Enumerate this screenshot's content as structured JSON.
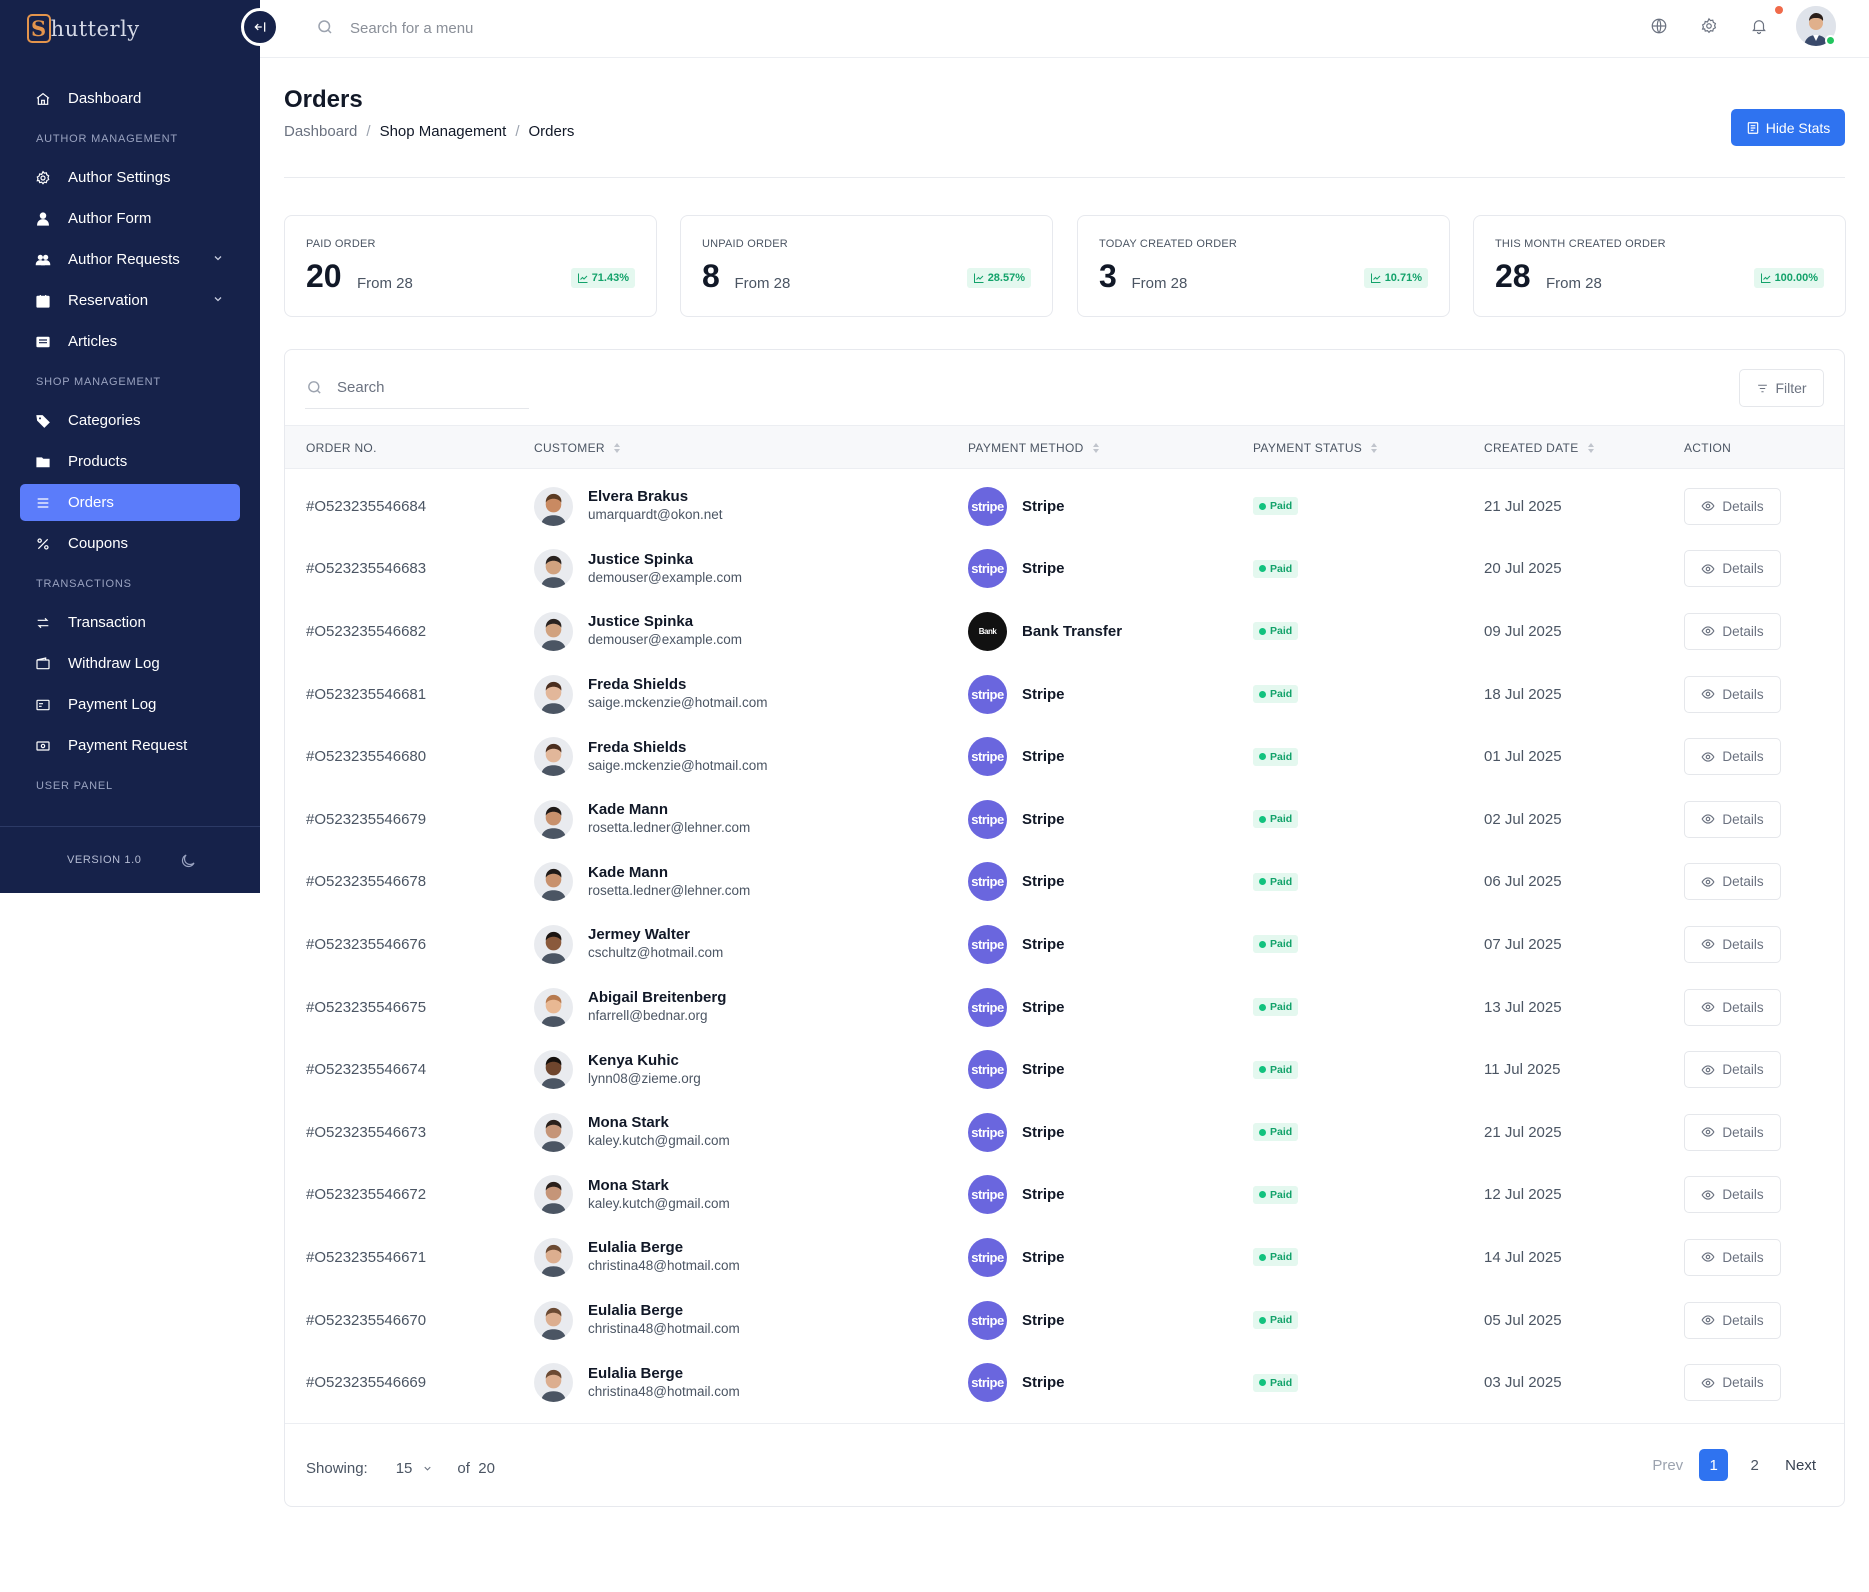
{
  "app": {
    "logo_letter": "S",
    "logo_rest": "hutterly"
  },
  "sidebar": {
    "items": [
      {
        "label": "Dashboard",
        "icon": "home-icon"
      },
      {
        "section": "AUTHOR MANAGEMENT"
      },
      {
        "label": "Author Settings",
        "icon": "gear-icon"
      },
      {
        "label": "Author Form",
        "icon": "user-icon"
      },
      {
        "label": "Author Requests",
        "icon": "users-icon",
        "chevron": true
      },
      {
        "label": "Reservation",
        "icon": "calendar-icon",
        "chevron": true
      },
      {
        "label": "Articles",
        "icon": "article-icon"
      },
      {
        "section": "SHOP MANAGEMENT"
      },
      {
        "label": "Categories",
        "icon": "tag-icon"
      },
      {
        "label": "Products",
        "icon": "folder-icon"
      },
      {
        "label": "Orders",
        "icon": "list-icon",
        "active": true
      },
      {
        "label": "Coupons",
        "icon": "percent-icon"
      },
      {
        "section": "TRANSACTIONS"
      },
      {
        "label": "Transaction",
        "icon": "exchange-icon"
      },
      {
        "label": "Withdraw Log",
        "icon": "wallet-icon"
      },
      {
        "label": "Payment Log",
        "icon": "receipt-icon"
      },
      {
        "label": "Payment Request",
        "icon": "money-icon"
      },
      {
        "section": "USER PANEL"
      }
    ],
    "version": "VERSION 1.0"
  },
  "topbar": {
    "search_placeholder": "Search for a menu"
  },
  "page": {
    "title": "Orders",
    "breadcrumb": [
      "Dashboard",
      "Shop Management",
      "Orders"
    ],
    "hide_stats_label": "Hide Stats"
  },
  "stats": [
    {
      "label": "PAID ORDER",
      "value": "20",
      "from": "From 28",
      "pct": "71.43%"
    },
    {
      "label": "UNPAID ORDER",
      "value": "8",
      "from": "From 28",
      "pct": "28.57%"
    },
    {
      "label": "TODAY CREATED ORDER",
      "value": "3",
      "from": "From 28",
      "pct": "10.71%"
    },
    {
      "label": "THIS MONTH CREATED ORDER",
      "value": "28",
      "from": "From 28",
      "pct": "100.00%"
    }
  ],
  "table": {
    "search_placeholder": "Search",
    "filter_label": "Filter",
    "columns": [
      "ORDER NO.",
      "CUSTOMER",
      "PAYMENT METHOD",
      "PAYMENT STATUS",
      "CREATED DATE",
      "ACTION"
    ],
    "details_label": "Details",
    "rows": [
      {
        "order": "#O523235546684",
        "name": "Elvera Brakus",
        "email": "umarquardt@okon.net",
        "method": "Stripe",
        "method_logo": "stripe",
        "status": "Paid",
        "date": "21 Jul 2025",
        "skin": "#c98a62",
        "hair": "#5a3a22"
      },
      {
        "order": "#O523235546683",
        "name": "Justice Spinka",
        "email": "demouser@example.com",
        "method": "Stripe",
        "method_logo": "stripe",
        "status": "Paid",
        "date": "20 Jul 2025",
        "skin": "#d1a27f",
        "hair": "#2a2320"
      },
      {
        "order": "#O523235546682",
        "name": "Justice Spinka",
        "email": "demouser@example.com",
        "method": "Bank Transfer",
        "method_logo": "Bank",
        "status": "Paid",
        "date": "09 Jul 2025",
        "skin": "#d1a27f",
        "hair": "#2a2320"
      },
      {
        "order": "#O523235546681",
        "name": "Freda Shields",
        "email": "saige.mckenzie@hotmail.com",
        "method": "Stripe",
        "method_logo": "stripe",
        "status": "Paid",
        "date": "18 Jul 2025",
        "skin": "#e2b79a",
        "hair": "#4a2e1f"
      },
      {
        "order": "#O523235546680",
        "name": "Freda Shields",
        "email": "saige.mckenzie@hotmail.com",
        "method": "Stripe",
        "method_logo": "stripe",
        "status": "Paid",
        "date": "01 Jul 2025",
        "skin": "#e2b79a",
        "hair": "#4a2e1f"
      },
      {
        "order": "#O523235546679",
        "name": "Kade Mann",
        "email": "rosetta.ledner@lehner.com",
        "method": "Stripe",
        "method_logo": "stripe",
        "status": "Paid",
        "date": "02 Jul 2025",
        "skin": "#c8916d",
        "hair": "#1f1a18"
      },
      {
        "order": "#O523235546678",
        "name": "Kade Mann",
        "email": "rosetta.ledner@lehner.com",
        "method": "Stripe",
        "method_logo": "stripe",
        "status": "Paid",
        "date": "06 Jul 2025",
        "skin": "#c8916d",
        "hair": "#1f1a18"
      },
      {
        "order": "#O523235546676",
        "name": "Jermey Walter",
        "email": "cschultz@hotmail.com",
        "method": "Stripe",
        "method_logo": "stripe",
        "status": "Paid",
        "date": "07 Jul 2025",
        "skin": "#8a5a3c",
        "hair": "#1b1512"
      },
      {
        "order": "#O523235546675",
        "name": "Abigail Breitenberg",
        "email": "nfarrell@bednar.org",
        "method": "Stripe",
        "method_logo": "stripe",
        "status": "Paid",
        "date": "13 Jul 2025",
        "skin": "#e8b893",
        "hair": "#b77a4f"
      },
      {
        "order": "#O523235546674",
        "name": "Kenya Kuhic",
        "email": "lynn08@zieme.org",
        "method": "Stripe",
        "method_logo": "stripe",
        "status": "Paid",
        "date": "11 Jul 2025",
        "skin": "#6e452d",
        "hair": "#15100d"
      },
      {
        "order": "#O523235546673",
        "name": "Mona Stark",
        "email": "kaley.kutch@gmail.com",
        "method": "Stripe",
        "method_logo": "stripe",
        "status": "Paid",
        "date": "21 Jul 2025",
        "skin": "#c59578",
        "hair": "#2a201b"
      },
      {
        "order": "#O523235546672",
        "name": "Mona Stark",
        "email": "kaley.kutch@gmail.com",
        "method": "Stripe",
        "method_logo": "stripe",
        "status": "Paid",
        "date": "12 Jul 2025",
        "skin": "#c59578",
        "hair": "#2a201b"
      },
      {
        "order": "#O523235546671",
        "name": "Eulalia Berge",
        "email": "christina48@hotmail.com",
        "method": "Stripe",
        "method_logo": "stripe",
        "status": "Paid",
        "date": "14 Jul 2025",
        "skin": "#dcae8f",
        "hair": "#6b4a33"
      },
      {
        "order": "#O523235546670",
        "name": "Eulalia Berge",
        "email": "christina48@hotmail.com",
        "method": "Stripe",
        "method_logo": "stripe",
        "status": "Paid",
        "date": "05 Jul 2025",
        "skin": "#dcae8f",
        "hair": "#6b4a33"
      },
      {
        "order": "#O523235546669",
        "name": "Eulalia Berge",
        "email": "christina48@hotmail.com",
        "method": "Stripe",
        "method_logo": "stripe",
        "status": "Paid",
        "date": "03 Jul 2025",
        "skin": "#dcae8f",
        "hair": "#6b4a33"
      }
    ]
  },
  "footer": {
    "showing_label": "Showing:",
    "per_page": "15",
    "of_label": "of",
    "total": "20",
    "prev_label": "Prev",
    "pages": [
      "1",
      "2"
    ],
    "next_label": "Next"
  },
  "colors": {
    "sidebar_bg": "#16224a",
    "accent": "#2f73f0",
    "active_nav": "#5b7cfa",
    "paid_green": "#12a26a",
    "stripe_purple": "#6a66de"
  }
}
